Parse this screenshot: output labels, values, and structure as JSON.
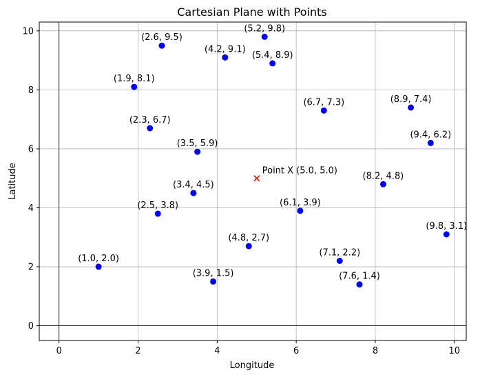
{
  "chart_data": {
    "type": "scatter",
    "title": "Cartesian Plane with Points",
    "xlabel": "Longitude",
    "ylabel": "Latitude",
    "xlim": [
      -0.5,
      10.3
    ],
    "ylim": [
      -0.5,
      10.3
    ],
    "x_ticks": [
      0,
      2,
      4,
      6,
      8,
      10
    ],
    "y_ticks": [
      0,
      2,
      4,
      6,
      8,
      10
    ],
    "grid": true,
    "colors": {
      "points": "#0000ff",
      "special": "#ff0000",
      "grid": "#b0b0b0",
      "reference_lines": "#000000"
    },
    "points": [
      {
        "x": 2.6,
        "y": 9.5,
        "label": "(2.6, 9.5)"
      },
      {
        "x": 5.2,
        "y": 9.8,
        "label": "(5.2, 9.8)"
      },
      {
        "x": 4.2,
        "y": 9.1,
        "label": "(4.2, 9.1)"
      },
      {
        "x": 5.4,
        "y": 8.9,
        "label": "(5.4, 8.9)"
      },
      {
        "x": 1.9,
        "y": 8.1,
        "label": "(1.9, 8.1)"
      },
      {
        "x": 6.7,
        "y": 7.3,
        "label": "(6.7, 7.3)"
      },
      {
        "x": 8.9,
        "y": 7.4,
        "label": "(8.9, 7.4)"
      },
      {
        "x": 2.3,
        "y": 6.7,
        "label": "(2.3, 6.7)"
      },
      {
        "x": 9.4,
        "y": 6.2,
        "label": "(9.4, 6.2)"
      },
      {
        "x": 3.5,
        "y": 5.9,
        "label": "(3.5, 5.9)"
      },
      {
        "x": 8.2,
        "y": 4.8,
        "label": "(8.2, 4.8)"
      },
      {
        "x": 3.4,
        "y": 4.5,
        "label": "(3.4, 4.5)"
      },
      {
        "x": 2.5,
        "y": 3.8,
        "label": "(2.5, 3.8)"
      },
      {
        "x": 6.1,
        "y": 3.9,
        "label": "(6.1, 3.9)"
      },
      {
        "x": 9.8,
        "y": 3.1,
        "label": "(9.8, 3.1)"
      },
      {
        "x": 4.8,
        "y": 2.7,
        "label": "(4.8, 2.7)"
      },
      {
        "x": 1.0,
        "y": 2.0,
        "label": "(1.0, 2.0)"
      },
      {
        "x": 7.1,
        "y": 2.2,
        "label": "(7.1, 2.2)"
      },
      {
        "x": 3.9,
        "y": 1.5,
        "label": "(3.9, 1.5)"
      },
      {
        "x": 7.6,
        "y": 1.4,
        "label": "(7.6, 1.4)"
      }
    ],
    "special_point": {
      "x": 5.0,
      "y": 5.0,
      "label": "Point X (5.0, 5.0)"
    },
    "reference_lines": {
      "x": 0,
      "y": 0
    }
  }
}
